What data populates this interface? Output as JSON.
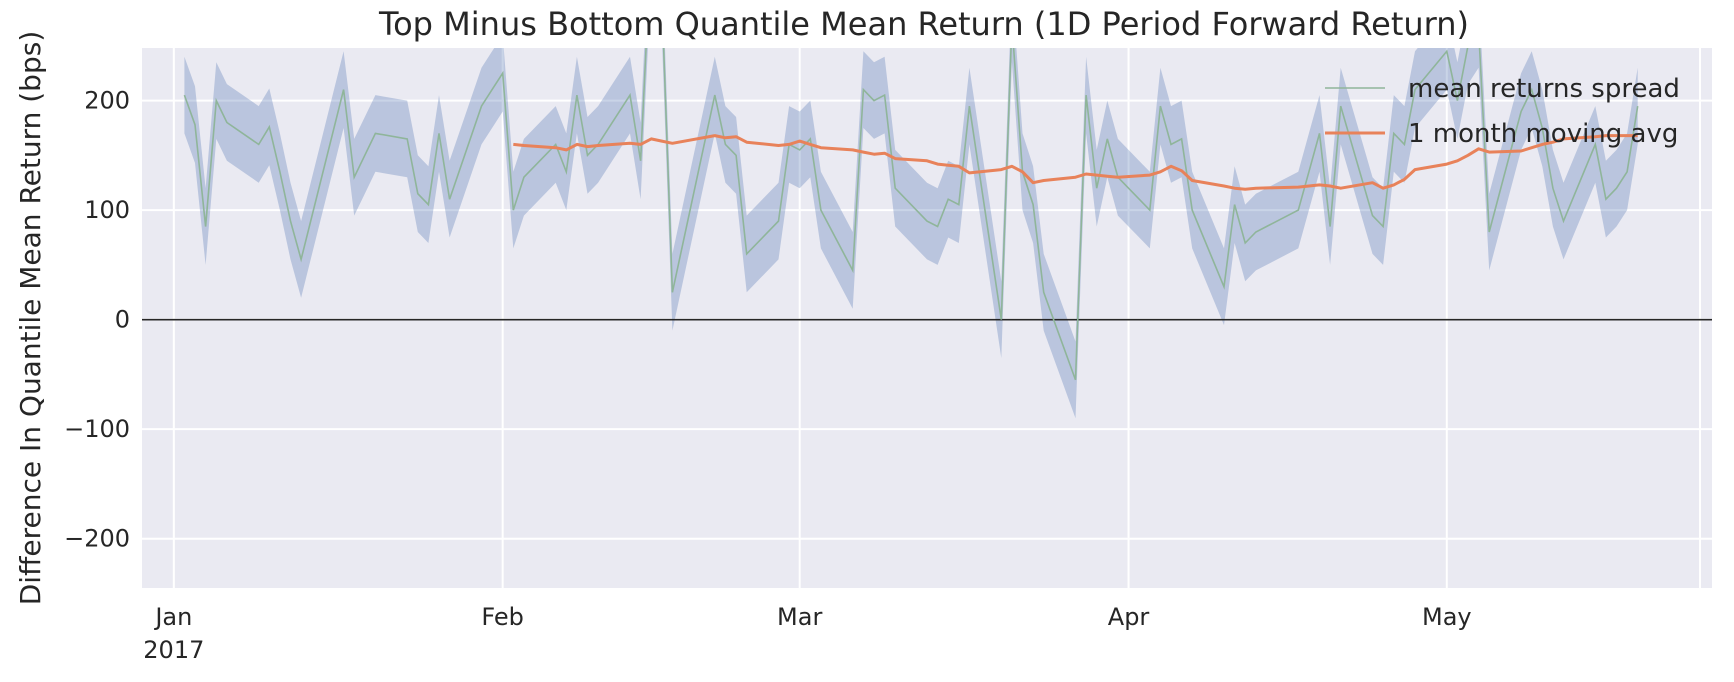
{
  "chart_data": {
    "type": "line",
    "title": "Top Minus Bottom Quantile Mean Return (1D Period Forward Return)",
    "xlabel": "",
    "ylabel": "Difference In Quantile Mean Return (bps)",
    "xlim": [
      "2016-12-29",
      "2017-05-26"
    ],
    "ylim": [
      -245,
      248
    ],
    "yticks": [
      -200,
      -100,
      0,
      100,
      200
    ],
    "xticks": [
      {
        "date": "2017-01-01",
        "label": "Jan",
        "sublabel": "2017"
      },
      {
        "date": "2017-02-01",
        "label": "Feb",
        "sublabel": ""
      },
      {
        "date": "2017-03-01",
        "label": "Mar",
        "sublabel": ""
      },
      {
        "date": "2017-04-01",
        "label": "Apr",
        "sublabel": ""
      },
      {
        "date": "2017-05-01",
        "label": "May",
        "sublabel": ""
      }
    ],
    "grid": true,
    "legend_position": "top-right",
    "zero_line": true,
    "band_halfwidth": 35,
    "colors": {
      "background": "#eaeaf2",
      "grid": "#ffffff",
      "spread": "#8fb59a",
      "band": "#4c72b0",
      "moving_avg": "#e8825a",
      "zero": "#262626"
    },
    "series": [
      {
        "name": "mean returns spread",
        "x": [
          "2017-01-02",
          "2017-01-03",
          "2017-01-04",
          "2017-01-05",
          "2017-01-06",
          "2017-01-09",
          "2017-01-10",
          "2017-01-11",
          "2017-01-12",
          "2017-01-13",
          "2017-01-17",
          "2017-01-18",
          "2017-01-19",
          "2017-01-20",
          "2017-01-23",
          "2017-01-24",
          "2017-01-25",
          "2017-01-26",
          "2017-01-27",
          "2017-01-30",
          "2017-01-31",
          "2017-02-01",
          "2017-02-02",
          "2017-02-03",
          "2017-02-06",
          "2017-02-07",
          "2017-02-08",
          "2017-02-09",
          "2017-02-10",
          "2017-02-13",
          "2017-02-14",
          "2017-02-15",
          "2017-02-16",
          "2017-02-17",
          "2017-02-21",
          "2017-02-22",
          "2017-02-23",
          "2017-02-24",
          "2017-02-27",
          "2017-02-28",
          "2017-03-01",
          "2017-03-02",
          "2017-03-03",
          "2017-03-06",
          "2017-03-07",
          "2017-03-08",
          "2017-03-09",
          "2017-03-10",
          "2017-03-13",
          "2017-03-14",
          "2017-03-15",
          "2017-03-16",
          "2017-03-17",
          "2017-03-20",
          "2017-03-21",
          "2017-03-22",
          "2017-03-23",
          "2017-03-24",
          "2017-03-27",
          "2017-03-28",
          "2017-03-29",
          "2017-03-30",
          "2017-03-31",
          "2017-04-03",
          "2017-04-04",
          "2017-04-05",
          "2017-04-06",
          "2017-04-07",
          "2017-04-10",
          "2017-04-11",
          "2017-04-12",
          "2017-04-13",
          "2017-04-17",
          "2017-04-18",
          "2017-04-19",
          "2017-04-20",
          "2017-04-21",
          "2017-04-24",
          "2017-04-25",
          "2017-04-26",
          "2017-04-27",
          "2017-04-28",
          "2017-05-01",
          "2017-05-02",
          "2017-05-03",
          "2017-05-04",
          "2017-05-05",
          "2017-05-08",
          "2017-05-09",
          "2017-05-10",
          "2017-05-11",
          "2017-05-12",
          "2017-05-15",
          "2017-05-16",
          "2017-05-17",
          "2017-05-18",
          "2017-05-19"
        ],
        "values": [
          205,
          178,
          85,
          200,
          180,
          160,
          176,
          135,
          90,
          55,
          210,
          130,
          150,
          170,
          165,
          115,
          105,
          170,
          110,
          195,
          210,
          225,
          100,
          130,
          160,
          135,
          205,
          150,
          160,
          205,
          145,
          345,
          295,
          25,
          205,
          160,
          150,
          60,
          90,
          160,
          155,
          165,
          100,
          45,
          210,
          200,
          205,
          120,
          90,
          85,
          110,
          105,
          195,
          0,
          270,
          135,
          105,
          25,
          -55,
          205,
          120,
          165,
          130,
          100,
          195,
          160,
          165,
          100,
          30,
          105,
          70,
          80,
          100,
          135,
          170,
          85,
          195,
          95,
          85,
          170,
          160,
          210,
          245,
          200,
          250,
          265,
          80,
          190,
          210,
          175,
          120,
          90,
          160,
          110,
          120,
          135,
          195
        ]
      },
      {
        "name": "1 month moving avg",
        "x": [
          "2017-02-02",
          "2017-02-03",
          "2017-02-06",
          "2017-02-07",
          "2017-02-08",
          "2017-02-09",
          "2017-02-10",
          "2017-02-13",
          "2017-02-14",
          "2017-02-15",
          "2017-02-16",
          "2017-02-17",
          "2017-02-21",
          "2017-02-22",
          "2017-02-23",
          "2017-02-24",
          "2017-02-27",
          "2017-02-28",
          "2017-03-01",
          "2017-03-02",
          "2017-03-03",
          "2017-03-06",
          "2017-03-07",
          "2017-03-08",
          "2017-03-09",
          "2017-03-10",
          "2017-03-13",
          "2017-03-14",
          "2017-03-15",
          "2017-03-16",
          "2017-03-17",
          "2017-03-20",
          "2017-03-21",
          "2017-03-22",
          "2017-03-23",
          "2017-03-24",
          "2017-03-27",
          "2017-03-28",
          "2017-03-29",
          "2017-03-30",
          "2017-03-31",
          "2017-04-03",
          "2017-04-04",
          "2017-04-05",
          "2017-04-06",
          "2017-04-07",
          "2017-04-10",
          "2017-04-11",
          "2017-04-12",
          "2017-04-13",
          "2017-04-17",
          "2017-04-18",
          "2017-04-19",
          "2017-04-20",
          "2017-04-21",
          "2017-04-24",
          "2017-04-25",
          "2017-04-26",
          "2017-04-27",
          "2017-04-28",
          "2017-05-01",
          "2017-05-02",
          "2017-05-03",
          "2017-05-04",
          "2017-05-05",
          "2017-05-08",
          "2017-05-09",
          "2017-05-10",
          "2017-05-11",
          "2017-05-12",
          "2017-05-15",
          "2017-05-16",
          "2017-05-17",
          "2017-05-18",
          "2017-05-19"
        ],
        "values": [
          160,
          159,
          157,
          155,
          160,
          158,
          159,
          161,
          160,
          165,
          163,
          161,
          168,
          166,
          167,
          162,
          159,
          160,
          163,
          160,
          157,
          155,
          153,
          151,
          152,
          147,
          145,
          142,
          141,
          140,
          134,
          137,
          140,
          135,
          125,
          127,
          130,
          133,
          132,
          131,
          130,
          132,
          135,
          140,
          136,
          127,
          122,
          120,
          119,
          120,
          121,
          122,
          123,
          122,
          120,
          125,
          120,
          123,
          128,
          137,
          142,
          145,
          150,
          156,
          153,
          154,
          157,
          160,
          162,
          165,
          167,
          168,
          168,
          168,
          168
        ]
      }
    ]
  }
}
